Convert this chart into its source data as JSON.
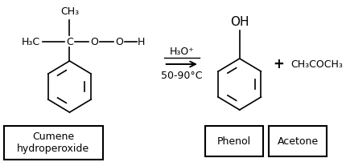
{
  "background_color": "#ffffff",
  "figsize": [
    4.3,
    2.02
  ],
  "dpi": 100,
  "cumene_box_label": "Cumene\nhydroperoxide",
  "phenol_box_label": "Phenol",
  "acetone_box_label": "Acetone",
  "arrow_label_above": "H₃O⁺",
  "arrow_label_below": "50-90°C",
  "plus_label": "+",
  "acetone_formula": "CH₃COCH₃",
  "font_size_main": 9,
  "font_size_label": 9,
  "font_size_plus": 12
}
